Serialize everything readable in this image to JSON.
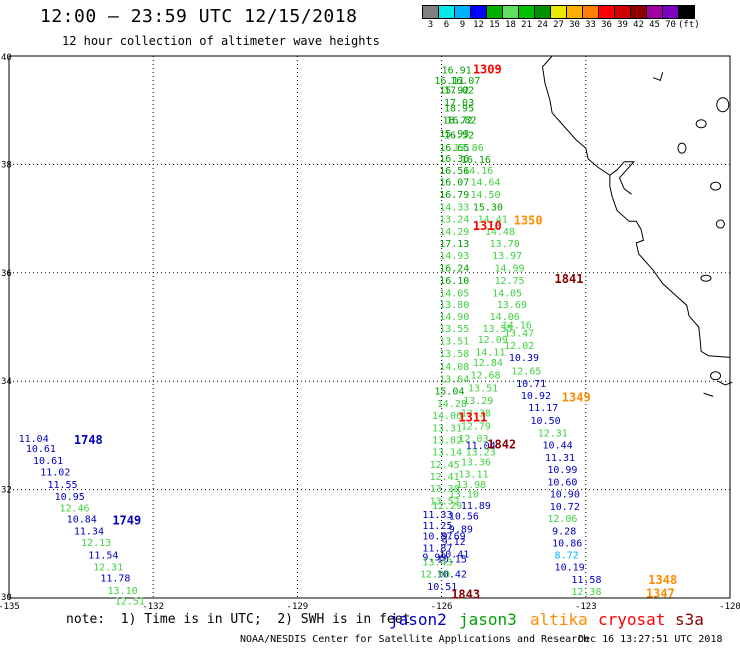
{
  "header": {
    "title": "12:00 – 23:59 UTC 12/15/2018",
    "subtitle": "12 hour collection of altimeter wave heights"
  },
  "colorbar": {
    "colors": [
      "#808080",
      "#00e8e8",
      "#00b0ff",
      "#0000ff",
      "#00b000",
      "#60e060",
      "#00c000",
      "#009000",
      "#e8e800",
      "#ffb000",
      "#ff8000",
      "#ff0000",
      "#d00000",
      "#900000",
      "#a000a0",
      "#8000c0",
      "#000000"
    ],
    "labels": [
      "3",
      "6",
      "9",
      "12",
      "15",
      "18",
      "21",
      "24",
      "27",
      "30",
      "33",
      "36",
      "39",
      "42",
      "45",
      "70",
      "(ft)"
    ]
  },
  "axes": {
    "lat_labels": [
      "40",
      "38",
      "36",
      "34",
      "32",
      "30"
    ],
    "lon_labels": [
      "-135",
      "-132",
      "-129",
      "-126",
      "-123",
      "-120"
    ]
  },
  "chart_data": {
    "type": "scatter",
    "xlabel": "Longitude",
    "ylabel": "Latitude",
    "xlim": [
      -135,
      -120
    ],
    "ylim": [
      30,
      40
    ],
    "series_colors": {
      "jason2": "#0000c0",
      "jason3": "#00a000",
      "altika": "#ff8c00",
      "cryosat": "#ff0000",
      "s3a": "#8b0000",
      "light": "#40d040",
      "cyan": "#00b0ff"
    },
    "points": [
      {
        "lon": -126.0,
        "lat": 39.75,
        "v": "16.91",
        "c": "jason3"
      },
      {
        "lon": -126.15,
        "lat": 39.56,
        "v": "16.11",
        "c": "jason3"
      },
      {
        "lon": -125.82,
        "lat": 39.56,
        "v": "16.07",
        "c": "jason3"
      },
      {
        "lon": -125.95,
        "lat": 39.38,
        "v": "17.02",
        "c": "jason3"
      },
      {
        "lon": -126.05,
        "lat": 39.38,
        "v": "15.92",
        "c": "jason3"
      },
      {
        "lon": -125.95,
        "lat": 39.15,
        "v": "17.03",
        "c": "jason3"
      },
      {
        "lon": -125.95,
        "lat": 39.05,
        "v": "18.95",
        "c": "jason3"
      },
      {
        "lon": -125.98,
        "lat": 38.83,
        "v": "18.72",
        "c": "jason3"
      },
      {
        "lon": -125.9,
        "lat": 38.83,
        "v": "16.82",
        "c": "jason3"
      },
      {
        "lon": -126.05,
        "lat": 38.58,
        "v": "15.93",
        "c": "jason3"
      },
      {
        "lon": -125.95,
        "lat": 38.55,
        "v": "16.52",
        "c": "jason3"
      },
      {
        "lon": -126.05,
        "lat": 38.32,
        "v": "16.65",
        "c": "jason3"
      },
      {
        "lon": -125.75,
        "lat": 38.32,
        "v": "13.86",
        "c": "light"
      },
      {
        "lon": -126.05,
        "lat": 38.12,
        "v": "16.36",
        "c": "jason3"
      },
      {
        "lon": -125.6,
        "lat": 38.1,
        "v": "16.16",
        "c": "jason3"
      },
      {
        "lon": -126.05,
        "lat": 37.9,
        "v": "16.56",
        "c": "jason3"
      },
      {
        "lon": -125.55,
        "lat": 37.9,
        "v": "14.16",
        "c": "light"
      },
      {
        "lon": -126.05,
        "lat": 37.68,
        "v": "16.07",
        "c": "jason3"
      },
      {
        "lon": -125.4,
        "lat": 37.68,
        "v": "14.64",
        "c": "light"
      },
      {
        "lon": -126.05,
        "lat": 37.45,
        "v": "16.79",
        "c": "jason3"
      },
      {
        "lon": -125.4,
        "lat": 37.45,
        "v": "14.50",
        "c": "light"
      },
      {
        "lon": -126.05,
        "lat": 37.22,
        "v": "14.33",
        "c": "light"
      },
      {
        "lon": -125.35,
        "lat": 37.22,
        "v": "15.30",
        "c": "jason3"
      },
      {
        "lon": -126.05,
        "lat": 37.0,
        "v": "13.24",
        "c": "light"
      },
      {
        "lon": -125.25,
        "lat": 37.0,
        "v": "14.41",
        "c": "light"
      },
      {
        "lon": -126.05,
        "lat": 36.77,
        "v": "14.29",
        "c": "light"
      },
      {
        "lon": -125.1,
        "lat": 36.77,
        "v": "14.48",
        "c": "light"
      },
      {
        "lon": -126.05,
        "lat": 36.55,
        "v": "17.13",
        "c": "jason3"
      },
      {
        "lon": -125.0,
        "lat": 36.55,
        "v": "13.70",
        "c": "light"
      },
      {
        "lon": -126.05,
        "lat": 36.33,
        "v": "14.93",
        "c": "light"
      },
      {
        "lon": -124.95,
        "lat": 36.33,
        "v": "13.97",
        "c": "light"
      },
      {
        "lon": -126.05,
        "lat": 36.1,
        "v": "16.24",
        "c": "jason3"
      },
      {
        "lon": -124.9,
        "lat": 36.1,
        "v": "14.99",
        "c": "light"
      },
      {
        "lon": -126.05,
        "lat": 35.87,
        "v": "16.10",
        "c": "jason3"
      },
      {
        "lon": -124.9,
        "lat": 35.87,
        "v": "12.75",
        "c": "light"
      },
      {
        "lon": -126.05,
        "lat": 35.64,
        "v": "14.05",
        "c": "light"
      },
      {
        "lon": -124.95,
        "lat": 35.64,
        "v": "14.05",
        "c": "light"
      },
      {
        "lon": -126.05,
        "lat": 35.42,
        "v": "13.80",
        "c": "light"
      },
      {
        "lon": -124.85,
        "lat": 35.42,
        "v": "13.69",
        "c": "light"
      },
      {
        "lon": -126.05,
        "lat": 35.2,
        "v": "14.90",
        "c": "light"
      },
      {
        "lon": -125.0,
        "lat": 35.2,
        "v": "14.06",
        "c": "light"
      },
      {
        "lon": -124.75,
        "lat": 35.05,
        "v": "14.16",
        "c": "light"
      },
      {
        "lon": -126.05,
        "lat": 34.98,
        "v": "13.55",
        "c": "light"
      },
      {
        "lon": -125.15,
        "lat": 34.98,
        "v": "13.55",
        "c": "light"
      },
      {
        "lon": -124.7,
        "lat": 34.9,
        "v": "13.47",
        "c": "light"
      },
      {
        "lon": -126.05,
        "lat": 34.75,
        "v": "13.51",
        "c": "light"
      },
      {
        "lon": -125.25,
        "lat": 34.78,
        "v": "12.09",
        "c": "light"
      },
      {
        "lon": -124.7,
        "lat": 34.67,
        "v": "12.02",
        "c": "light"
      },
      {
        "lon": -126.05,
        "lat": 34.52,
        "v": "13.58",
        "c": "light"
      },
      {
        "lon": -125.3,
        "lat": 34.55,
        "v": "14.11",
        "c": "light"
      },
      {
        "lon": -124.6,
        "lat": 34.45,
        "v": "10.39",
        "c": "jason2"
      },
      {
        "lon": -126.05,
        "lat": 34.28,
        "v": "14.08",
        "c": "light"
      },
      {
        "lon": -125.35,
        "lat": 34.35,
        "v": "12.84",
        "c": "light"
      },
      {
        "lon": -124.55,
        "lat": 34.2,
        "v": "12.65",
        "c": "light"
      },
      {
        "lon": -126.05,
        "lat": 34.05,
        "v": "13.64",
        "c": "light"
      },
      {
        "lon": -125.4,
        "lat": 34.12,
        "v": "12.68",
        "c": "light"
      },
      {
        "lon": -124.45,
        "lat": 33.97,
        "v": "10.71",
        "c": "jason2"
      },
      {
        "lon": -126.15,
        "lat": 33.83,
        "v": "15.04",
        "c": "jason3"
      },
      {
        "lon": -125.45,
        "lat": 33.88,
        "v": "13.51",
        "c": "light"
      },
      {
        "lon": -124.35,
        "lat": 33.75,
        "v": "10.92",
        "c": "jason2"
      },
      {
        "lon": -126.1,
        "lat": 33.6,
        "v": "14.28",
        "c": "light"
      },
      {
        "lon": -125.55,
        "lat": 33.65,
        "v": "13.29",
        "c": "light"
      },
      {
        "lon": -124.2,
        "lat": 33.52,
        "v": "11.17",
        "c": "jason2"
      },
      {
        "lon": -126.2,
        "lat": 33.38,
        "v": "14.06",
        "c": "light"
      },
      {
        "lon": -125.6,
        "lat": 33.42,
        "v": "13.38",
        "c": "light"
      },
      {
        "lon": -124.15,
        "lat": 33.28,
        "v": "10.50",
        "c": "jason2"
      },
      {
        "lon": -126.2,
        "lat": 33.15,
        "v": "13.31",
        "c": "light"
      },
      {
        "lon": -125.6,
        "lat": 33.18,
        "v": "12.79",
        "c": "light"
      },
      {
        "lon": -124.0,
        "lat": 33.05,
        "v": "12.31",
        "c": "light"
      },
      {
        "lon": -126.2,
        "lat": 32.92,
        "v": "13.82",
        "c": "light"
      },
      {
        "lon": -125.65,
        "lat": 32.95,
        "v": "12.03",
        "c": "light"
      },
      {
        "lon": -123.9,
        "lat": 32.83,
        "v": "10.44",
        "c": "jason2"
      },
      {
        "lon": -126.2,
        "lat": 32.7,
        "v": "13.14",
        "c": "light"
      },
      {
        "lon": -125.5,
        "lat": 32.82,
        "v": "11.04",
        "c": "jason2"
      },
      {
        "lon": -125.5,
        "lat": 32.7,
        "v": "13.23",
        "c": "light"
      },
      {
        "lon": -123.85,
        "lat": 32.6,
        "v": "11.31",
        "c": "jason2"
      },
      {
        "lon": -126.25,
        "lat": 32.47,
        "v": "12.45",
        "c": "light"
      },
      {
        "lon": -125.6,
        "lat": 32.52,
        "v": "13.36",
        "c": "light"
      },
      {
        "lon": -123.8,
        "lat": 32.38,
        "v": "10.99",
        "c": "jason2"
      },
      {
        "lon": -126.25,
        "lat": 32.25,
        "v": "12.41",
        "c": "light"
      },
      {
        "lon": -125.65,
        "lat": 32.3,
        "v": "13.11",
        "c": "light"
      },
      {
        "lon": -123.8,
        "lat": 32.15,
        "v": "10.60",
        "c": "jason2"
      },
      {
        "lon": -126.25,
        "lat": 32.03,
        "v": "13.30",
        "c": "light"
      },
      {
        "lon": -125.7,
        "lat": 32.1,
        "v": "13.98",
        "c": "light"
      },
      {
        "lon": -123.75,
        "lat": 31.93,
        "v": "10.90",
        "c": "jason2"
      },
      {
        "lon": -126.25,
        "lat": 31.8,
        "v": "13.52",
        "c": "light"
      },
      {
        "lon": -125.85,
        "lat": 31.93,
        "v": "13.10",
        "c": "light"
      },
      {
        "lon": -126.2,
        "lat": 31.72,
        "v": "12.29",
        "c": "light"
      },
      {
        "lon": -125.6,
        "lat": 31.72,
        "v": "11.89",
        "c": "jason2"
      },
      {
        "lon": -123.75,
        "lat": 31.7,
        "v": "10.72",
        "c": "jason2"
      },
      {
        "lon": -126.4,
        "lat": 31.55,
        "v": "11.33",
        "c": "jason2"
      },
      {
        "lon": -125.85,
        "lat": 31.52,
        "v": "10.56",
        "c": "jason2"
      },
      {
        "lon": -123.8,
        "lat": 31.48,
        "v": "12.06",
        "c": "light"
      },
      {
        "lon": -126.4,
        "lat": 31.35,
        "v": "11.25",
        "c": "jason2"
      },
      {
        "lon": -125.85,
        "lat": 31.28,
        "v": "9.89",
        "c": "jason2"
      },
      {
        "lon": -123.7,
        "lat": 31.25,
        "v": "9.28",
        "c": "jason2"
      },
      {
        "lon": -126.4,
        "lat": 31.15,
        "v": "10.87",
        "c": "jason2"
      },
      {
        "lon": -126.0,
        "lat": 31.15,
        "v": "9.69",
        "c": "jason2"
      },
      {
        "lon": -126.0,
        "lat": 31.05,
        "v": "9.12",
        "c": "jason2"
      },
      {
        "lon": -123.7,
        "lat": 31.02,
        "v": "10.86",
        "c": "jason2"
      },
      {
        "lon": -126.4,
        "lat": 30.93,
        "v": "11.87",
        "c": "jason2"
      },
      {
        "lon": -126.05,
        "lat": 30.82,
        "v": "10.41",
        "c": "jason2"
      },
      {
        "lon": -123.65,
        "lat": 30.8,
        "v": "8.72",
        "c": "cyan"
      },
      {
        "lon": -126.4,
        "lat": 30.77,
        "v": "9.99",
        "c": "jason2"
      },
      {
        "lon": -126.1,
        "lat": 30.73,
        "v": "10.15",
        "c": "jason2"
      },
      {
        "lon": -123.65,
        "lat": 30.58,
        "v": "10.19",
        "c": "jason2"
      },
      {
        "lon": -126.4,
        "lat": 30.67,
        "v": "13.43",
        "c": "light"
      },
      {
        "lon": -126.1,
        "lat": 30.45,
        "v": "10.42",
        "c": "jason2"
      },
      {
        "lon": -123.3,
        "lat": 30.35,
        "v": "11.58",
        "c": "jason2"
      },
      {
        "lon": -126.45,
        "lat": 30.45,
        "v": "12.90",
        "c": "light"
      },
      {
        "lon": -126.3,
        "lat": 30.22,
        "v": "10.51",
        "c": "jason2"
      },
      {
        "lon": -123.3,
        "lat": 30.13,
        "v": "12.38",
        "c": "light"
      },
      {
        "lon": -134.8,
        "lat": 32.95,
        "v": "11.04",
        "c": "jason2"
      },
      {
        "lon": -134.65,
        "lat": 32.77,
        "v": "10.61",
        "c": "jason2"
      },
      {
        "lon": -134.5,
        "lat": 32.55,
        "v": "10.61",
        "c": "jason2"
      },
      {
        "lon": -134.35,
        "lat": 32.33,
        "v": "11.02",
        "c": "jason2"
      },
      {
        "lon": -134.2,
        "lat": 32.1,
        "v": "11.55",
        "c": "jason2"
      },
      {
        "lon": -134.05,
        "lat": 31.88,
        "v": "10.95",
        "c": "jason2"
      },
      {
        "lon": -133.95,
        "lat": 31.67,
        "v": "12.46",
        "c": "light"
      },
      {
        "lon": -133.8,
        "lat": 31.47,
        "v": "10.84",
        "c": "jason2"
      },
      {
        "lon": -133.65,
        "lat": 31.25,
        "v": "11.34",
        "c": "jason2"
      },
      {
        "lon": -133.5,
        "lat": 31.03,
        "v": "12.13",
        "c": "light"
      },
      {
        "lon": -133.35,
        "lat": 30.8,
        "v": "11.54",
        "c": "jason2"
      },
      {
        "lon": -133.25,
        "lat": 30.58,
        "v": "12.31",
        "c": "light"
      },
      {
        "lon": -133.1,
        "lat": 30.38,
        "v": "11.78",
        "c": "jason2"
      },
      {
        "lon": -132.95,
        "lat": 30.15,
        "v": "13.10",
        "c": "light"
      },
      {
        "lon": -132.8,
        "lat": 29.95,
        "v": "12.51",
        "c": "light"
      }
    ],
    "time_labels": [
      {
        "lon": -125.35,
        "lat": 39.77,
        "v": "1309",
        "c": "cryosat"
      },
      {
        "lon": -124.5,
        "lat": 36.98,
        "v": "1350",
        "c": "altika"
      },
      {
        "lon": -125.35,
        "lat": 36.88,
        "v": "1310",
        "c": "cryosat"
      },
      {
        "lon": -123.65,
        "lat": 35.9,
        "v": "1841",
        "c": "s3a"
      },
      {
        "lon": -123.5,
        "lat": 33.72,
        "v": "1349",
        "c": "altika"
      },
      {
        "lon": -125.65,
        "lat": 33.35,
        "v": "1311",
        "c": "cryosat"
      },
      {
        "lon": -125.05,
        "lat": 32.85,
        "v": "1842",
        "c": "s3a"
      },
      {
        "lon": -133.65,
        "lat": 32.93,
        "v": "1748",
        "c": "jason2"
      },
      {
        "lon": -132.85,
        "lat": 31.45,
        "v": "1749",
        "c": "jason2"
      },
      {
        "lon": -121.7,
        "lat": 30.35,
        "v": "1348",
        "c": "altika"
      },
      {
        "lon": -121.75,
        "lat": 30.1,
        "v": "1347",
        "c": "altika"
      },
      {
        "lon": -125.8,
        "lat": 30.08,
        "v": "1843",
        "c": "s3a"
      }
    ]
  },
  "footer": {
    "note": "note:  1) Time is in UTC;  2) SWH is in feet",
    "satellites": [
      {
        "name": "jason2",
        "color": "#0000c0"
      },
      {
        "name": "jason3",
        "color": "#00a000"
      },
      {
        "name": "altika",
        "color": "#ff8c00"
      },
      {
        "name": "cryosat",
        "color": "#ff0000"
      },
      {
        "name": "s3a",
        "color": "#8b0000"
      }
    ],
    "credit": "NOAA/NESDIS Center for Satellite Applications and Research",
    "timestamp": "Dec 16 13:27:51 UTC 2018"
  }
}
